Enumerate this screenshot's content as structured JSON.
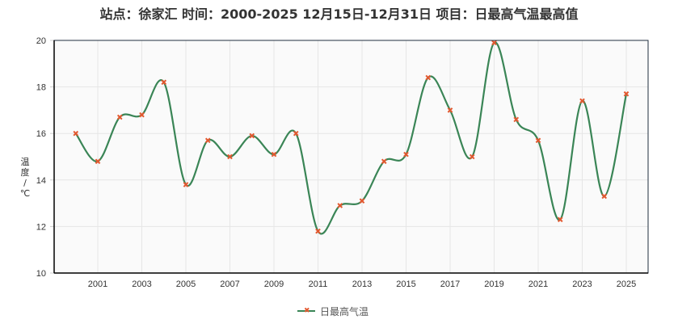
{
  "title": "站点：徐家汇 时间：2000-2025  12月15日-12月31日 项目：日最高气温最高值",
  "y_axis_label": [
    "温",
    "度",
    "/",
    "℃"
  ],
  "legend": {
    "label": "日最高气温"
  },
  "colors": {
    "line": "#3a8556",
    "marker": "#e4572e",
    "plot_bg": "#fafafa",
    "grid": "#e6e6e6",
    "axis": "#1f2d3d"
  },
  "chart_data": {
    "type": "line",
    "title": "站点：徐家汇 时间：2000-2025  12月15日-12月31日 项目：日最高气温最高值",
    "xlabel": "",
    "ylabel": "温度/℃",
    "ylim": [
      10,
      20
    ],
    "yticks": [
      10,
      12,
      14,
      16,
      18,
      20
    ],
    "xticks": [
      "2001",
      "2003",
      "2005",
      "2007",
      "2009",
      "2011",
      "2013",
      "2015",
      "2017",
      "2019",
      "2021",
      "2023",
      "2025"
    ],
    "grid": true,
    "legend_position": "bottom",
    "smooth": true,
    "categories": [
      "2000",
      "2001",
      "2002",
      "2003",
      "2004",
      "2005",
      "2006",
      "2007",
      "2008",
      "2009",
      "2010",
      "2011",
      "2012",
      "2013",
      "2014",
      "2015",
      "2016",
      "2017",
      "2018",
      "2019",
      "2020",
      "2021",
      "2022",
      "2023",
      "2024",
      "2025"
    ],
    "series": [
      {
        "name": "日最高气温",
        "values": [
          16.0,
          14.8,
          16.7,
          16.8,
          18.2,
          13.8,
          15.7,
          15.0,
          15.9,
          15.1,
          16.0,
          11.8,
          12.9,
          13.1,
          14.8,
          15.1,
          18.4,
          17.0,
          15.0,
          19.9,
          16.6,
          15.7,
          12.3,
          17.4,
          13.3,
          17.7
        ]
      }
    ]
  }
}
